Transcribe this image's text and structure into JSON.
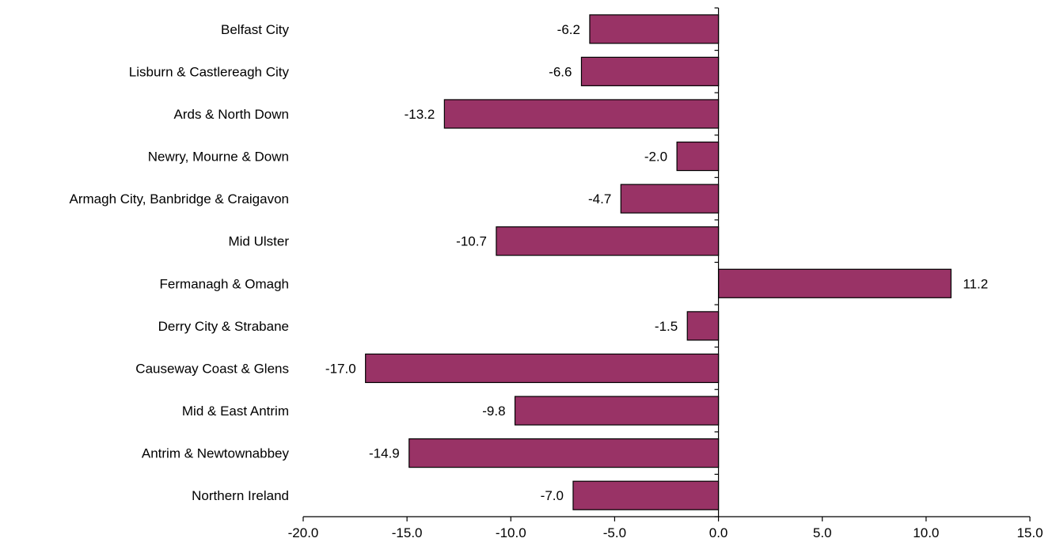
{
  "chart_data": {
    "type": "bar",
    "orientation": "horizontal",
    "categories": [
      "Belfast City",
      "Lisburn & Castlereagh City",
      "Ards & North Down",
      "Newry, Mourne & Down",
      "Armagh City, Banbridge & Craigavon",
      "Mid Ulster",
      "Fermanagh & Omagh",
      "Derry City & Strabane",
      "Causeway Coast & Glens",
      "Mid & East Antrim",
      "Antrim & Newtownabbey",
      "Northern Ireland"
    ],
    "values": [
      -6.2,
      -6.6,
      -13.2,
      -2.0,
      -4.7,
      -10.7,
      11.2,
      -1.5,
      -17.0,
      -9.8,
      -14.9,
      -7.0
    ],
    "value_labels": [
      "-6.2",
      "-6.6",
      "-13.2",
      "-2.0",
      "-4.7",
      "-10.7",
      "11.2",
      "-1.5",
      "-17.0",
      "-9.8",
      "-14.9",
      "-7.0"
    ],
    "xlim": [
      -20.0,
      15.0
    ],
    "x_ticks": [
      -20.0,
      -15.0,
      -10.0,
      -5.0,
      0.0,
      5.0,
      10.0,
      15.0
    ],
    "x_tick_labels": [
      "-20.0",
      "-15.0",
      "-10.0",
      "-5.0",
      "0.0",
      "5.0",
      "10.0",
      "15.0"
    ],
    "title": "",
    "xlabel": "",
    "ylabel": "",
    "grid": false,
    "legend": "none",
    "bar_color": "#993366"
  }
}
